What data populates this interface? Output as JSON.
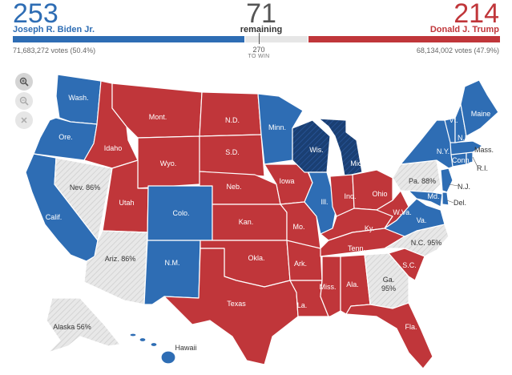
{
  "tally": {
    "biden": {
      "ev": "253",
      "name": "Joseph R. Biden Jr.",
      "votes": "71,683,272 votes (50.4%)"
    },
    "remaining": {
      "ev": "71",
      "label": "remaining"
    },
    "trump": {
      "ev": "214",
      "name": "Donald J. Trump",
      "votes": "68,134,002 votes (47.9%)"
    },
    "threshold": {
      "number": "270",
      "label": "TO WIN"
    }
  },
  "colors": {
    "dem": "#2e6db4",
    "dem_dark": "#1a3f73",
    "rep": "#c0363a",
    "undecided": "#e6e6e6",
    "text_gray": "#666666"
  },
  "controls": {
    "zoom_in": "zoom-in-icon",
    "zoom_out": "zoom-out-icon",
    "reset": "close-icon"
  },
  "states": {
    "wash": "Wash.",
    "ore": "Ore.",
    "calif": "Calif.",
    "nev": "Nev. 86%",
    "idaho": "Idaho",
    "mont": "Mont.",
    "wyo": "Wyo.",
    "utah": "Utah",
    "colo": "Colo.",
    "ariz": "Ariz. 86%",
    "nm": "N.M.",
    "nd": "N.D.",
    "sd": "S.D.",
    "neb": "Neb.",
    "kan": "Kan.",
    "okla": "Okla.",
    "texas": "Texas",
    "minn": "Minn.",
    "iowa": "Iowa",
    "mo": "Mo.",
    "ark": "Ark.",
    "la": "La.",
    "wis": "Wis.",
    "ill": "Ill.",
    "mich": "Mich.",
    "ind": "Ind.",
    "ohio": "Ohio",
    "ky": "Ky.",
    "tenn": "Tenn.",
    "miss": "Miss.",
    "ala": "Ala.",
    "ga": "Ga.",
    "ga_pct": "95%",
    "fla": "Fla.",
    "sc": "S.C.",
    "nc": "N.C. 95%",
    "va": "Va.",
    "wva": "W.Va.",
    "pa": "Pa. 88%",
    "ny": "N.Y.",
    "vt": "Vt.",
    "nh": "N.H.",
    "maine": "Maine",
    "mass": "Mass.",
    "conn": "Conn.",
    "ri": "R.I.",
    "nj": "N.J.",
    "del": "Del.",
    "md": "Md.",
    "alaska": "Alaska 56%",
    "hawaii": "Hawaii"
  }
}
